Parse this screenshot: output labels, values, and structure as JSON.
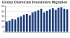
{
  "chart_data": {
    "type": "bar",
    "title": "Global Chemicals Investment Migration",
    "categories": [
      null,
      null,
      null,
      null,
      null,
      null,
      null,
      null,
      null,
      null,
      null,
      null,
      null,
      null,
      null,
      null,
      null,
      null,
      null,
      null,
      null,
      null
    ],
    "values": [
      20,
      22,
      25,
      24,
      28,
      30,
      33,
      35,
      32,
      38,
      40,
      42,
      45,
      38,
      41,
      44,
      46,
      43,
      47,
      48,
      45,
      44
    ],
    "color": "#1f3f7a",
    "ylim": [
      0,
      50
    ],
    "yticks": [
      0,
      10,
      20,
      30,
      40,
      50
    ],
    "grid": true,
    "tick_labels": "y"
  }
}
